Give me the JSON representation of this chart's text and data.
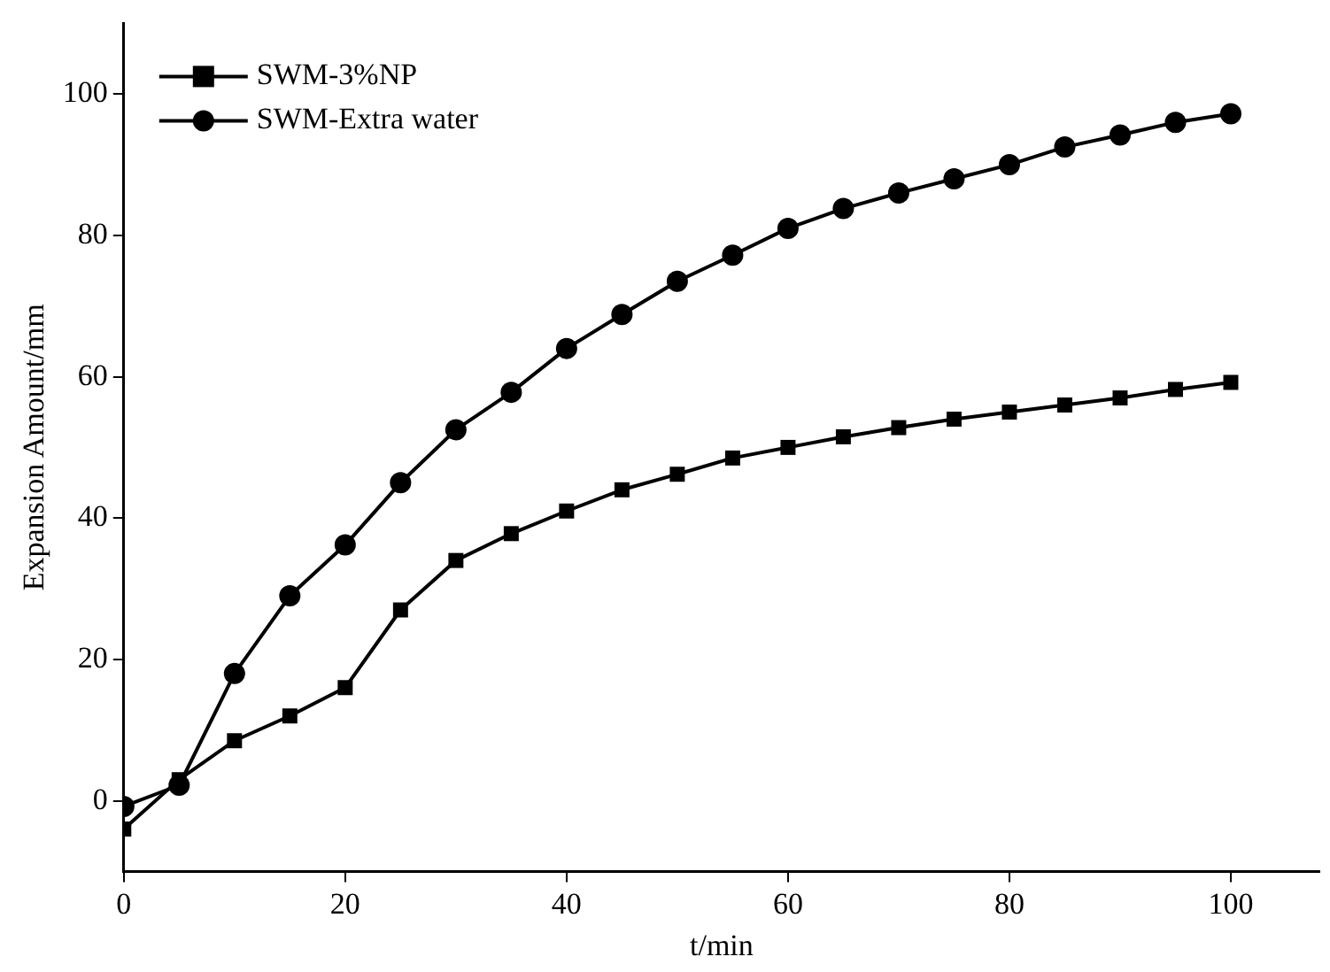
{
  "chart_data": {
    "type": "line",
    "xlabel": "t/min",
    "ylabel": "Expansion Amount/mm",
    "x": [
      0,
      5,
      10,
      15,
      20,
      25,
      30,
      35,
      40,
      45,
      50,
      55,
      60,
      65,
      70,
      75,
      80,
      85,
      90,
      95,
      100
    ],
    "series": [
      {
        "name": "SWM-3%NP",
        "color": "#000000",
        "marker": "square",
        "values": [
          -4,
          3,
          8.5,
          12,
          16,
          27,
          34,
          37.8,
          41,
          44,
          46.2,
          48.5,
          50,
          51.5,
          52.8,
          54,
          55,
          56,
          57,
          58.2,
          59.2
        ]
      },
      {
        "name": "SWM-Extra water",
        "color": "#000000",
        "marker": "circle",
        "values": [
          -0.8,
          2.2,
          18,
          29,
          36.2,
          45,
          52.5,
          57.8,
          64,
          68.8,
          73.5,
          77.2,
          81,
          83.8,
          86,
          88,
          90,
          92.5,
          94.2,
          96,
          97.2
        ]
      }
    ],
    "xlim": [
      0,
      108
    ],
    "xticks": [
      0,
      20,
      40,
      60,
      80,
      100
    ],
    "ylim": [
      -10,
      110
    ],
    "yticks": [
      0,
      20,
      40,
      60,
      80,
      100
    ],
    "grid": false,
    "legend": "top left",
    "line_style": "solid"
  }
}
